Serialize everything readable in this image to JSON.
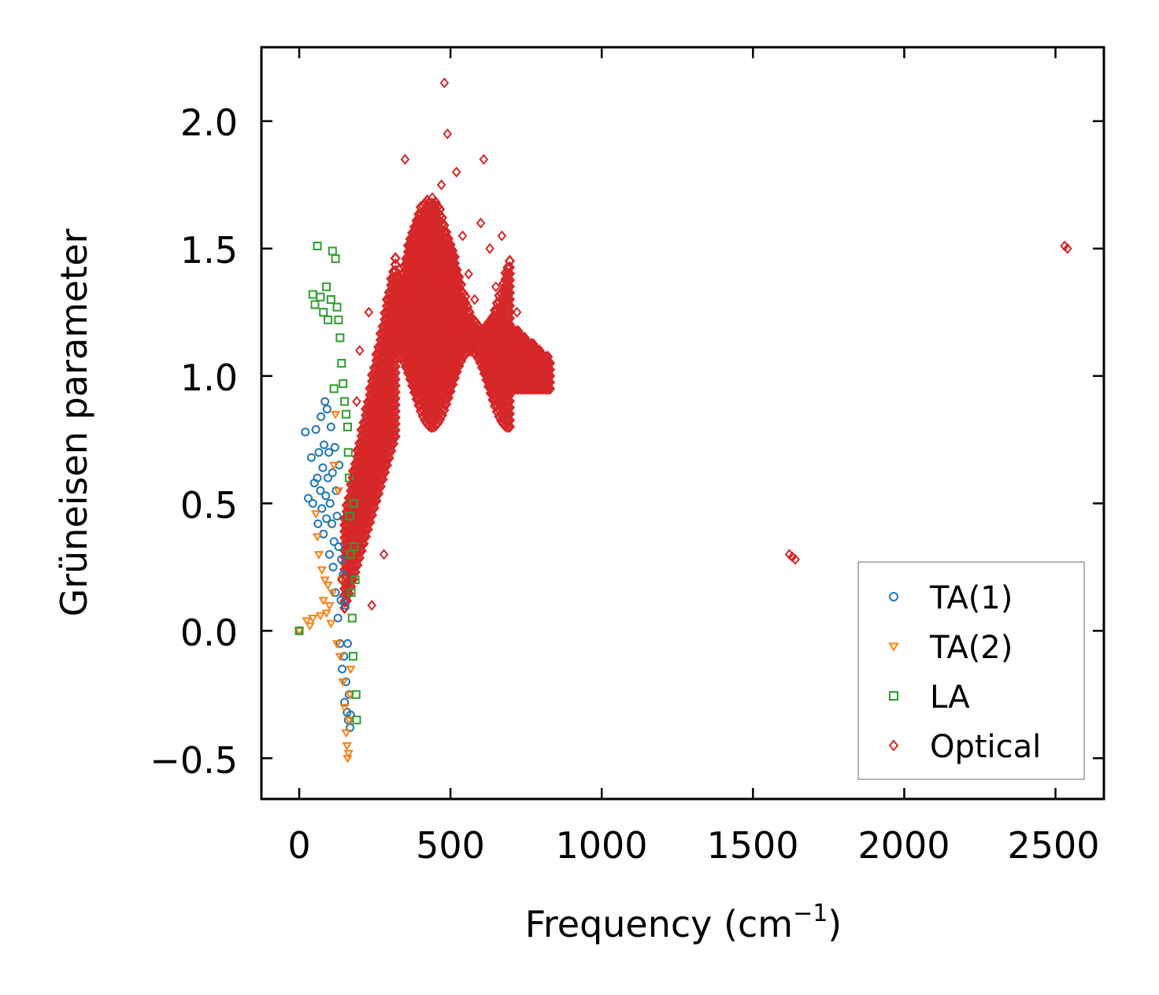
{
  "chart_data": {
    "type": "scatter",
    "title": "",
    "xlabel": "Frequency (cm",
    "xlabel_sup": "−1",
    "xlabel_close": ")",
    "ylabel": "Grüneisen parameter",
    "xlim": [
      -125,
      2660
    ],
    "ylim": [
      -0.66,
      2.29
    ],
    "xticks": [
      0,
      500,
      1000,
      1500,
      2000,
      2500
    ],
    "xtick_labels": [
      "0",
      "500",
      "1000",
      "1500",
      "2000",
      "2500"
    ],
    "yticks": [
      -0.5,
      0.0,
      0.5,
      1.0,
      1.5,
      2.0
    ],
    "ytick_labels": [
      "−0.5",
      "0.0",
      "0.5",
      "1.0",
      "1.5",
      "2.0"
    ],
    "legend_position": "lower-right",
    "series": [
      {
        "name": "TA(1)",
        "marker": "circle",
        "color": "#1f77b4",
        "points": [
          [
            0,
            0
          ],
          [
            20,
            0.78
          ],
          [
            30,
            0.52
          ],
          [
            40,
            0.68
          ],
          [
            45,
            0.5
          ],
          [
            50,
            0.58
          ],
          [
            55,
            0.79
          ],
          [
            60,
            0.6
          ],
          [
            62,
            0.42
          ],
          [
            65,
            0.7
          ],
          [
            70,
            0.55
          ],
          [
            72,
            0.84
          ],
          [
            75,
            0.48
          ],
          [
            78,
            0.64
          ],
          [
            80,
            0.38
          ],
          [
            82,
            0.73
          ],
          [
            85,
            0.9
          ],
          [
            88,
            0.53
          ],
          [
            90,
            0.44
          ],
          [
            92,
            0.87
          ],
          [
            95,
            0.6
          ],
          [
            98,
            0.7
          ],
          [
            100,
            0.3
          ],
          [
            102,
            0.5
          ],
          [
            105,
            0.8
          ],
          [
            108,
            0.42
          ],
          [
            110,
            0.62
          ],
          [
            112,
            0.25
          ],
          [
            115,
            0.35
          ],
          [
            118,
            0.72
          ],
          [
            120,
            0.15
          ],
          [
            122,
            0.55
          ],
          [
            125,
            0.45
          ],
          [
            128,
            0.05
          ],
          [
            130,
            0.33
          ],
          [
            132,
            0.65
          ],
          [
            135,
            -0.05
          ],
          [
            138,
            0.12
          ],
          [
            140,
            0.28
          ],
          [
            142,
            -0.15
          ],
          [
            145,
            0.22
          ],
          [
            148,
            -0.1
          ],
          [
            150,
            -0.28
          ],
          [
            152,
            0.1
          ],
          [
            155,
            -0.2
          ],
          [
            158,
            -0.32
          ],
          [
            160,
            -0.05
          ],
          [
            162,
            -0.35
          ],
          [
            165,
            -0.25
          ],
          [
            168,
            -0.38
          ],
          [
            170,
            -0.33
          ]
        ]
      },
      {
        "name": "TA(2)",
        "marker": "triangle-down",
        "color": "#ff7f0e",
        "points": [
          [
            0,
            0
          ],
          [
            25,
            0.04
          ],
          [
            35,
            0.02
          ],
          [
            45,
            0.05
          ],
          [
            55,
            0.46
          ],
          [
            60,
            0.37
          ],
          [
            65,
            0.3
          ],
          [
            70,
            0.06
          ],
          [
            75,
            0.24
          ],
          [
            80,
            0.12
          ],
          [
            85,
            0.2
          ],
          [
            90,
            0.07
          ],
          [
            95,
            0.18
          ],
          [
            100,
            0.1
          ],
          [
            105,
            0.03
          ],
          [
            110,
            0.15
          ],
          [
            115,
            0.65
          ],
          [
            120,
            0.85
          ],
          [
            125,
            -0.05
          ],
          [
            130,
            0.55
          ],
          [
            135,
            -0.1
          ],
          [
            140,
            0.2
          ],
          [
            145,
            -0.2
          ],
          [
            150,
            -0.3
          ],
          [
            155,
            -0.4
          ],
          [
            158,
            -0.45
          ],
          [
            160,
            -0.5
          ],
          [
            163,
            -0.48
          ],
          [
            165,
            -0.35
          ],
          [
            168,
            -0.25
          ],
          [
            170,
            -0.15
          ]
        ]
      },
      {
        "name": "LA",
        "marker": "square",
        "color": "#2ca02c",
        "points": [
          [
            0,
            0
          ],
          [
            45,
            1.32
          ],
          [
            52,
            1.28
          ],
          [
            60,
            1.51
          ],
          [
            70,
            1.31
          ],
          [
            80,
            1.25
          ],
          [
            90,
            1.35
          ],
          [
            95,
            1.22
          ],
          [
            105,
            1.3
          ],
          [
            110,
            1.49
          ],
          [
            115,
            0.95
          ],
          [
            120,
            1.46
          ],
          [
            125,
            1.27
          ],
          [
            130,
            1.22
          ],
          [
            135,
            1.15
          ],
          [
            140,
            1.05
          ],
          [
            145,
            0.97
          ],
          [
            150,
            0.9
          ],
          [
            155,
            0.85
          ],
          [
            160,
            0.8
          ],
          [
            162,
            0.7
          ],
          [
            165,
            0.6
          ],
          [
            168,
            0.45
          ],
          [
            170,
            0.3
          ],
          [
            172,
            0.15
          ],
          [
            175,
            0.05
          ],
          [
            178,
            -0.1
          ],
          [
            180,
            0.5
          ],
          [
            182,
            0.33
          ],
          [
            185,
            0.2
          ],
          [
            188,
            -0.25
          ],
          [
            190,
            -0.35
          ]
        ]
      },
      {
        "name": "Optical",
        "marker": "diamond",
        "color": "#d62728",
        "points": [
          [
            140,
            0.2
          ],
          [
            160,
            0.4
          ],
          [
            175,
            0.6
          ],
          [
            190,
            0.9
          ],
          [
            200,
            1.1
          ],
          [
            210,
            0.7
          ],
          [
            220,
            0.5
          ],
          [
            230,
            1.25
          ],
          [
            240,
            0.1
          ],
          [
            250,
            0.85
          ],
          [
            260,
            0.6
          ],
          [
            270,
            0.95
          ],
          [
            280,
            0.3
          ],
          [
            300,
            1.05
          ],
          [
            320,
            1.3
          ],
          [
            340,
            1.4
          ],
          [
            350,
            1.85
          ],
          [
            360,
            1.2
          ],
          [
            380,
            1.55
          ],
          [
            400,
            1.6
          ],
          [
            420,
            1.45
          ],
          [
            440,
            1.7
          ],
          [
            450,
            1.3
          ],
          [
            460,
            1.2
          ],
          [
            470,
            1.75
          ],
          [
            480,
            2.15
          ],
          [
            490,
            1.95
          ],
          [
            500,
            1.5
          ],
          [
            520,
            1.8
          ],
          [
            540,
            1.55
          ],
          [
            560,
            1.4
          ],
          [
            580,
            1.3
          ],
          [
            600,
            1.6
          ],
          [
            610,
            1.85
          ],
          [
            630,
            1.5
          ],
          [
            650,
            1.35
          ],
          [
            670,
            1.55
          ],
          [
            690,
            1.3
          ],
          [
            720,
            1.25
          ],
          [
            760,
            1.1
          ],
          [
            800,
            1.0
          ],
          [
            820,
            0.95
          ],
          [
            1620,
            0.3
          ],
          [
            1630,
            0.29
          ],
          [
            1640,
            0.28
          ],
          [
            2530,
            1.51
          ],
          [
            2540,
            1.5
          ]
        ]
      }
    ]
  }
}
